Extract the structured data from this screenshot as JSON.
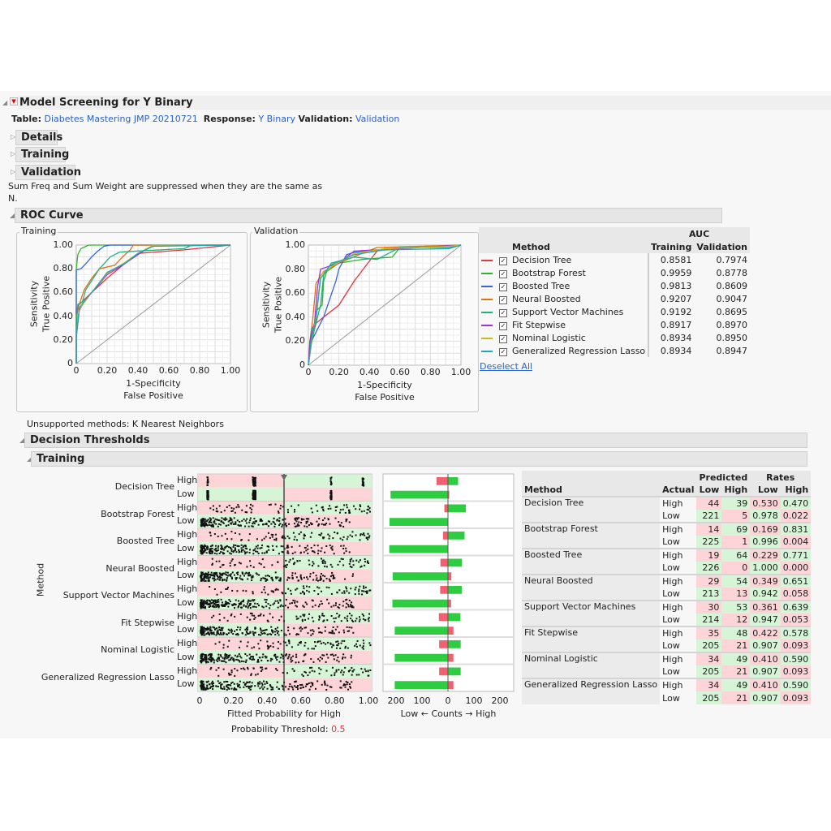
{
  "header": {
    "title": "Model Screening for Y Binary",
    "table_label": "Table:",
    "table_value": "Diabetes Mastering JMP 20210721",
    "response_label": "Response:",
    "response_value": "Y Binary",
    "validation_label": "Validation:",
    "validation_value": "Validation"
  },
  "outline": {
    "details": "Details",
    "training": "Training",
    "validation": "Validation",
    "note_line1": "Sum Freq and Sum Weight are suppressed when they are the same as",
    "note_line2": "N.",
    "roc": "ROC Curve",
    "unsupported": "Unsupported methods:  K Nearest Neighbors",
    "decision_thresholds": "Decision Thresholds",
    "dt_training": "Training"
  },
  "roc_table": {
    "auc_header": "AUC",
    "method_header": "Method",
    "training_header": "Training",
    "validation_header": "Validation",
    "deselect_all": "Deselect All",
    "rows": [
      {
        "method": "Decision Tree",
        "color": "#e8323c",
        "training": "0.8581",
        "validation": "0.7974"
      },
      {
        "method": "Bootstrap Forest",
        "color": "#2cb52c",
        "training": "0.9959",
        "validation": "0.8778"
      },
      {
        "method": "Boosted Tree",
        "color": "#3463e6",
        "training": "0.9813",
        "validation": "0.8609"
      },
      {
        "method": "Neural Boosted",
        "color": "#e07010",
        "training": "0.9207",
        "validation": "0.9047"
      },
      {
        "method": "Support Vector Machines",
        "color": "#20b080",
        "training": "0.9192",
        "validation": "0.8695"
      },
      {
        "method": "Fit Stepwise",
        "color": "#a030e0",
        "training": "0.8917",
        "validation": "0.8970"
      },
      {
        "method": "Nominal Logistic",
        "color": "#c8b820",
        "training": "0.8934",
        "validation": "0.8950"
      },
      {
        "method": "Generalized Regression Lasso",
        "color": "#20a8b0",
        "training": "0.8934",
        "validation": "0.8947"
      }
    ]
  },
  "threshold_table": {
    "method_header": "Method",
    "actual_header": "Actual",
    "predicted_header": "Predicted",
    "rates_header": "Rates",
    "low": "Low",
    "high": "High",
    "rows": [
      {
        "method": "Decision Tree",
        "high": [
          "44",
          "39",
          "0.530",
          "0.470"
        ],
        "low": [
          "221",
          "5",
          "0.978",
          "0.022"
        ]
      },
      {
        "method": "Bootstrap Forest",
        "high": [
          "14",
          "69",
          "0.169",
          "0.831"
        ],
        "low": [
          "225",
          "1",
          "0.996",
          "0.004"
        ]
      },
      {
        "method": "Boosted Tree",
        "high": [
          "19",
          "64",
          "0.229",
          "0.771"
        ],
        "low": [
          "226",
          "0",
          "1.000",
          "0.000"
        ]
      },
      {
        "method": "Neural Boosted",
        "high": [
          "29",
          "54",
          "0.349",
          "0.651"
        ],
        "low": [
          "213",
          "13",
          "0.942",
          "0.058"
        ]
      },
      {
        "method": "Support Vector Machines",
        "high": [
          "30",
          "53",
          "0.361",
          "0.639"
        ],
        "low": [
          "214",
          "12",
          "0.947",
          "0.053"
        ]
      },
      {
        "method": "Fit Stepwise",
        "high": [
          "35",
          "48",
          "0.422",
          "0.578"
        ],
        "low": [
          "205",
          "21",
          "0.907",
          "0.093"
        ]
      },
      {
        "method": "Nominal Logistic",
        "high": [
          "34",
          "49",
          "0.410",
          "0.590"
        ],
        "low": [
          "205",
          "21",
          "0.907",
          "0.093"
        ]
      },
      {
        "method": "Generalized Regression Lasso",
        "high": [
          "34",
          "49",
          "0.410",
          "0.590"
        ],
        "low": [
          "205",
          "21",
          "0.907",
          "0.093"
        ]
      }
    ]
  },
  "chart_data": [
    {
      "type": "line",
      "title": "Training",
      "xlabel": "1-Specificity",
      "xlabel2": "False Positive",
      "ylabel": "Sensitivity",
      "ylabel2": "True Positive",
      "xlim": [
        0,
        1
      ],
      "ylim": [
        0,
        1
      ],
      "ticks": [
        "0",
        "0.20",
        "0.40",
        "0.60",
        "0.80",
        "1.00"
      ],
      "grid": true,
      "series": [
        {
          "name": "Decision Tree",
          "points": [
            [
              0,
              0
            ],
            [
              0,
              0.45
            ],
            [
              0.02,
              0.5
            ],
            [
              0.1,
              0.6
            ],
            [
              0.2,
              0.72
            ],
            [
              0.3,
              0.83
            ],
            [
              0.4,
              0.93
            ],
            [
              0.7,
              0.96
            ],
            [
              1,
              1
            ]
          ]
        },
        {
          "name": "Bootstrap Forest",
          "points": [
            [
              0,
              0
            ],
            [
              0,
              0.8
            ],
            [
              0.01,
              0.92
            ],
            [
              0.03,
              0.97
            ],
            [
              0.08,
              1
            ],
            [
              1,
              1
            ]
          ]
        },
        {
          "name": "Boosted Tree",
          "points": [
            [
              0,
              0
            ],
            [
              0,
              0.79
            ],
            [
              0.03,
              0.8
            ],
            [
              0.06,
              0.84
            ],
            [
              0.1,
              0.9
            ],
            [
              0.14,
              0.95
            ],
            [
              0.18,
              0.99
            ],
            [
              0.22,
              1
            ],
            [
              1,
              1
            ]
          ]
        },
        {
          "name": "Neural Boosted",
          "points": [
            [
              0,
              0
            ],
            [
              0,
              0.4
            ],
            [
              0.02,
              0.5
            ],
            [
              0.05,
              0.62
            ],
            [
              0.1,
              0.72
            ],
            [
              0.15,
              0.8
            ],
            [
              0.25,
              0.83
            ],
            [
              0.3,
              0.9
            ],
            [
              0.35,
              0.96
            ],
            [
              0.37,
              1
            ],
            [
              1,
              1
            ]
          ]
        },
        {
          "name": "Support Vector Machines",
          "points": [
            [
              0,
              0
            ],
            [
              0,
              0.3
            ],
            [
              0.01,
              0.5
            ],
            [
              0.04,
              0.52
            ],
            [
              0.06,
              0.62
            ],
            [
              0.1,
              0.7
            ],
            [
              0.15,
              0.8
            ],
            [
              0.22,
              0.9
            ],
            [
              0.28,
              0.94
            ],
            [
              0.4,
              0.95
            ],
            [
              0.7,
              0.97
            ],
            [
              0.75,
              1
            ],
            [
              1,
              1
            ]
          ]
        },
        {
          "name": "Fit Stepwise",
          "points": [
            [
              0,
              0
            ],
            [
              0,
              0.22
            ],
            [
              0.02,
              0.45
            ],
            [
              0.05,
              0.52
            ],
            [
              0.1,
              0.6
            ],
            [
              0.2,
              0.75
            ],
            [
              0.3,
              0.83
            ],
            [
              0.4,
              0.92
            ],
            [
              0.5,
              1
            ],
            [
              1,
              1
            ]
          ]
        },
        {
          "name": "Nominal Logistic",
          "points": [
            [
              0,
              0
            ],
            [
              0,
              0.25
            ],
            [
              0.02,
              0.46
            ],
            [
              0.06,
              0.53
            ],
            [
              0.11,
              0.62
            ],
            [
              0.2,
              0.76
            ],
            [
              0.3,
              0.84
            ],
            [
              0.4,
              0.93
            ],
            [
              0.5,
              1
            ],
            [
              1,
              1
            ]
          ]
        },
        {
          "name": "Generalized Regression Lasso",
          "points": [
            [
              0,
              0
            ],
            [
              0,
              0.24
            ],
            [
              0.02,
              0.47
            ],
            [
              0.06,
              0.54
            ],
            [
              0.12,
              0.63
            ],
            [
              0.2,
              0.77
            ],
            [
              0.32,
              0.85
            ],
            [
              0.4,
              0.93
            ],
            [
              0.5,
              0.99
            ],
            [
              1,
              1
            ]
          ]
        }
      ]
    },
    {
      "type": "line",
      "title": "Validation",
      "xlabel": "1-Specificity",
      "xlabel2": "False Positive",
      "ylabel": "Sensitivity",
      "ylabel2": "True Positive",
      "xlim": [
        0,
        1
      ],
      "ylim": [
        0,
        1
      ],
      "ticks": [
        "0",
        "0.20",
        "0.40",
        "0.60",
        "0.80",
        "1.00"
      ],
      "grid": true,
      "series": [
        {
          "name": "Decision Tree",
          "points": [
            [
              0,
              0
            ],
            [
              0.02,
              0.2
            ],
            [
              0.05,
              0.35
            ],
            [
              0.1,
              0.4
            ],
            [
              0.2,
              0.5
            ],
            [
              0.3,
              0.7
            ],
            [
              0.45,
              0.95
            ],
            [
              0.5,
              0.97
            ],
            [
              1,
              1
            ]
          ]
        },
        {
          "name": "Bootstrap Forest",
          "points": [
            [
              0,
              0
            ],
            [
              0.02,
              0.18
            ],
            [
              0.04,
              0.3
            ],
            [
              0.05,
              0.45
            ],
            [
              0.09,
              0.5
            ],
            [
              0.1,
              0.7
            ],
            [
              0.12,
              0.78
            ],
            [
              0.2,
              0.85
            ],
            [
              0.35,
              0.88
            ],
            [
              0.55,
              0.9
            ],
            [
              0.6,
              0.98
            ],
            [
              1,
              1
            ]
          ]
        },
        {
          "name": "Boosted Tree",
          "points": [
            [
              0,
              0
            ],
            [
              0.02,
              0.2
            ],
            [
              0.06,
              0.3
            ],
            [
              0.1,
              0.4
            ],
            [
              0.14,
              0.55
            ],
            [
              0.18,
              0.7
            ],
            [
              0.2,
              0.8
            ],
            [
              0.25,
              0.92
            ],
            [
              0.3,
              0.94
            ],
            [
              0.6,
              0.97
            ],
            [
              1,
              1
            ]
          ]
        },
        {
          "name": "Neural Boosted",
          "points": [
            [
              0,
              0
            ],
            [
              0.01,
              0.2
            ],
            [
              0.03,
              0.4
            ],
            [
              0.05,
              0.68
            ],
            [
              0.07,
              0.72
            ],
            [
              0.1,
              0.78
            ],
            [
              0.2,
              0.85
            ],
            [
              0.35,
              0.93
            ],
            [
              0.45,
              0.98
            ],
            [
              1,
              1
            ]
          ]
        },
        {
          "name": "Support Vector Machines",
          "points": [
            [
              0,
              0
            ],
            [
              0.02,
              0.3
            ],
            [
              0.05,
              0.35
            ],
            [
              0.08,
              0.5
            ],
            [
              0.1,
              0.75
            ],
            [
              0.15,
              0.85
            ],
            [
              0.3,
              0.9
            ],
            [
              0.45,
              0.88
            ],
            [
              0.6,
              0.98
            ],
            [
              0.92,
              0.98
            ],
            [
              1,
              1
            ]
          ]
        },
        {
          "name": "Fit Stepwise",
          "points": [
            [
              0,
              0
            ],
            [
              0.01,
              0.2
            ],
            [
              0.04,
              0.35
            ],
            [
              0.06,
              0.65
            ],
            [
              0.08,
              0.8
            ],
            [
              0.2,
              0.85
            ],
            [
              0.3,
              0.95
            ],
            [
              1,
              1
            ]
          ]
        },
        {
          "name": "Nominal Logistic",
          "points": [
            [
              0,
              0
            ],
            [
              0.02,
              0.2
            ],
            [
              0.05,
              0.4
            ],
            [
              0.08,
              0.75
            ],
            [
              0.15,
              0.82
            ],
            [
              0.3,
              0.93
            ],
            [
              0.5,
              0.97
            ],
            [
              0.92,
              0.99
            ],
            [
              1,
              1
            ]
          ]
        },
        {
          "name": "Generalized Regression Lasso",
          "points": [
            [
              0,
              0
            ],
            [
              0.02,
              0.22
            ],
            [
              0.05,
              0.38
            ],
            [
              0.08,
              0.72
            ],
            [
              0.14,
              0.83
            ],
            [
              0.3,
              0.92
            ],
            [
              0.5,
              0.96
            ],
            [
              0.92,
              0.97
            ],
            [
              1,
              1
            ]
          ]
        }
      ]
    },
    {
      "type": "scatter",
      "xlabel": "Fitted Probability for High",
      "ylabel": "Method",
      "xlim": [
        0,
        1
      ],
      "ticks": [
        "0",
        "0.20",
        "0.40",
        "0.60",
        "0.80",
        "1.00"
      ],
      "row_labels": [
        "High",
        "Low"
      ],
      "threshold_label": "Probability Threshold:",
      "threshold": "0.5",
      "color_match": "#d6f5d6",
      "color_mismatch": "#fdd5d8"
    },
    {
      "type": "bar",
      "xlabel": "Low ← Counts → High",
      "ticks": [
        "200",
        "100",
        "0",
        "100",
        "200"
      ],
      "xlim": [
        -250,
        250
      ],
      "color_correct": "#2ecc40",
      "color_wrong": "#f06070"
    }
  ]
}
